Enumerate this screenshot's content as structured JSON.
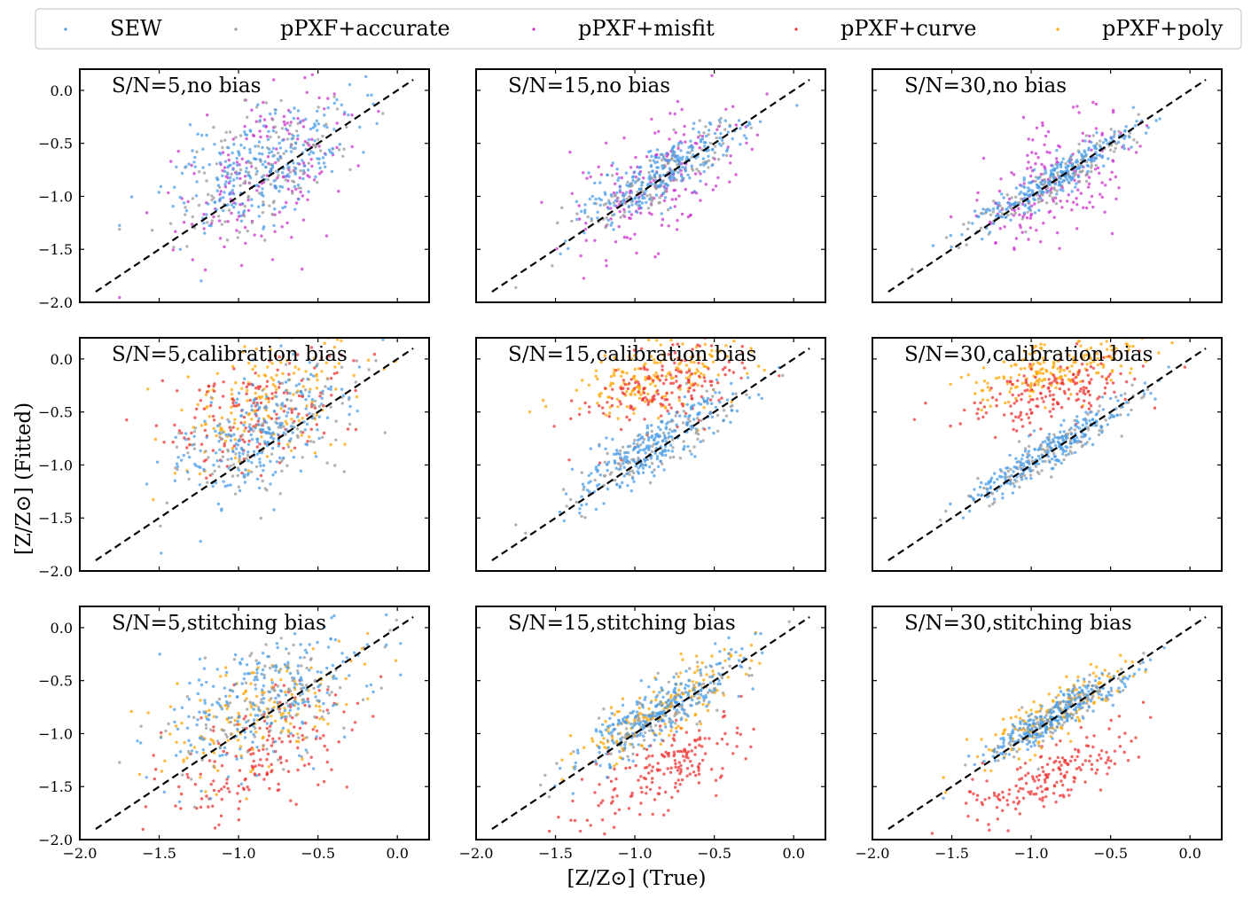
{
  "chart_data": {
    "type": "scatter",
    "xlabel": "[Z/Z⊙] (True)",
    "ylabel": "[Z/Z⊙] (Fitted)",
    "xlim": [
      -2.0,
      0.2
    ],
    "ylim": [
      -2.0,
      0.2
    ],
    "xticks": [
      "−2.0",
      "−1.5",
      "−1.0",
      "−0.5",
      "0.0"
    ],
    "yticks": [
      "−2.0",
      "−1.5",
      "−1.0",
      "−0.5",
      "0.0"
    ],
    "reference_line": {
      "style": "dashed",
      "from": [
        -1.9,
        -1.9
      ],
      "to": [
        0.1,
        0.1
      ]
    },
    "legend": {
      "placement": "top",
      "entries": [
        {
          "label": "SEW",
          "color": "#4a9de8"
        },
        {
          "label": "pPXF+accurate",
          "color": "#999999"
        },
        {
          "label": "pPXF+misfit",
          "color": "#cc33cc"
        },
        {
          "label": "pPXF+curve",
          "color": "#ee3333"
        },
        {
          "label": "pPXF+poly",
          "color": "#ffa500"
        }
      ]
    },
    "panels": [
      {
        "title": "S/N=5,no bias",
        "row": 0,
        "col": 0,
        "spread": 0.3,
        "series": [
          {
            "name": "pPXF+misfit",
            "offset": 0.1,
            "scale": 0.55,
            "noise": 0.38,
            "count": 180
          },
          {
            "name": "pPXF+accurate",
            "offset": 0.12,
            "scale": 0.6,
            "noise": 0.28,
            "count": 150
          },
          {
            "name": "SEW",
            "offset": 0.15,
            "scale": 0.6,
            "noise": 0.27,
            "count": 260
          }
        ]
      },
      {
        "title": "S/N=15,no bias",
        "row": 0,
        "col": 1,
        "spread": 0.26,
        "series": [
          {
            "name": "pPXF+misfit",
            "offset": 0.0,
            "scale": 0.75,
            "noise": 0.3,
            "count": 180
          },
          {
            "name": "pPXF+accurate",
            "offset": 0.02,
            "scale": 0.85,
            "noise": 0.14,
            "count": 150
          },
          {
            "name": "SEW",
            "offset": 0.05,
            "scale": 0.85,
            "noise": 0.13,
            "count": 260
          }
        ]
      },
      {
        "title": "S/N=30,no bias",
        "row": 0,
        "col": 2,
        "spread": 0.26,
        "series": [
          {
            "name": "pPXF+misfit",
            "offset": -0.05,
            "scale": 0.7,
            "noise": 0.3,
            "count": 180
          },
          {
            "name": "pPXF+accurate",
            "offset": 0.0,
            "scale": 0.9,
            "noise": 0.09,
            "count": 150
          },
          {
            "name": "SEW",
            "offset": 0.02,
            "scale": 0.9,
            "noise": 0.08,
            "count": 260
          }
        ]
      },
      {
        "title": "S/N=5,calibration bias",
        "row": 1,
        "col": 0,
        "spread": 0.3,
        "series": [
          {
            "name": "pPXF+poly",
            "offset": 0.45,
            "scale": 0.45,
            "noise": 0.28,
            "count": 170
          },
          {
            "name": "pPXF+curve",
            "offset": 0.4,
            "scale": 0.5,
            "noise": 0.28,
            "count": 170
          },
          {
            "name": "pPXF+accurate",
            "offset": 0.12,
            "scale": 0.6,
            "noise": 0.28,
            "count": 130
          },
          {
            "name": "SEW",
            "offset": 0.15,
            "scale": 0.6,
            "noise": 0.27,
            "count": 230
          }
        ]
      },
      {
        "title": "S/N=15,calibration bias",
        "row": 1,
        "col": 1,
        "spread": 0.26,
        "series": [
          {
            "name": "pPXF+poly",
            "offset": 0.7,
            "scale": 0.35,
            "noise": 0.16,
            "count": 180
          },
          {
            "name": "pPXF+curve",
            "offset": 0.55,
            "scale": 0.45,
            "noise": 0.18,
            "count": 170
          },
          {
            "name": "pPXF+accurate",
            "offset": 0.02,
            "scale": 0.85,
            "noise": 0.14,
            "count": 130
          },
          {
            "name": "SEW",
            "offset": 0.05,
            "scale": 0.85,
            "noise": 0.13,
            "count": 240
          }
        ]
      },
      {
        "title": "S/N=30,calibration bias",
        "row": 1,
        "col": 2,
        "spread": 0.26,
        "series": [
          {
            "name": "pPXF+poly",
            "offset": 0.75,
            "scale": 0.3,
            "noise": 0.12,
            "count": 180
          },
          {
            "name": "pPXF+curve",
            "offset": 0.55,
            "scale": 0.4,
            "noise": 0.15,
            "count": 170
          },
          {
            "name": "pPXF+accurate",
            "offset": 0.0,
            "scale": 0.9,
            "noise": 0.09,
            "count": 130
          },
          {
            "name": "SEW",
            "offset": 0.02,
            "scale": 0.9,
            "noise": 0.08,
            "count": 240
          }
        ]
      },
      {
        "title": "S/N=5,stitching bias",
        "row": 2,
        "col": 0,
        "spread": 0.3,
        "series": [
          {
            "name": "pPXF+curve",
            "offset": -0.35,
            "scale": 0.55,
            "noise": 0.28,
            "count": 170
          },
          {
            "name": "pPXF+poly",
            "offset": 0.1,
            "scale": 0.55,
            "noise": 0.28,
            "count": 160
          },
          {
            "name": "pPXF+accurate",
            "offset": 0.12,
            "scale": 0.6,
            "noise": 0.28,
            "count": 130
          },
          {
            "name": "SEW",
            "offset": 0.15,
            "scale": 0.6,
            "noise": 0.27,
            "count": 230
          }
        ]
      },
      {
        "title": "S/N=15,stitching bias",
        "row": 2,
        "col": 1,
        "spread": 0.26,
        "series": [
          {
            "name": "pPXF+curve",
            "offset": -0.5,
            "scale": 0.65,
            "noise": 0.18,
            "count": 180
          },
          {
            "name": "pPXF+poly",
            "offset": 0.05,
            "scale": 0.85,
            "noise": 0.16,
            "count": 160
          },
          {
            "name": "pPXF+accurate",
            "offset": 0.02,
            "scale": 0.85,
            "noise": 0.14,
            "count": 130
          },
          {
            "name": "SEW",
            "offset": 0.05,
            "scale": 0.85,
            "noise": 0.13,
            "count": 240
          }
        ]
      },
      {
        "title": "S/N=30,stitching bias",
        "row": 2,
        "col": 2,
        "spread": 0.26,
        "series": [
          {
            "name": "pPXF+curve",
            "offset": -0.55,
            "scale": 0.65,
            "noise": 0.15,
            "count": 180
          },
          {
            "name": "pPXF+poly",
            "offset": 0.05,
            "scale": 0.9,
            "noise": 0.12,
            "count": 160
          },
          {
            "name": "pPXF+accurate",
            "offset": 0.0,
            "scale": 0.9,
            "noise": 0.09,
            "count": 130
          },
          {
            "name": "SEW",
            "offset": 0.02,
            "scale": 0.9,
            "noise": 0.08,
            "count": 240
          }
        ]
      }
    ]
  }
}
